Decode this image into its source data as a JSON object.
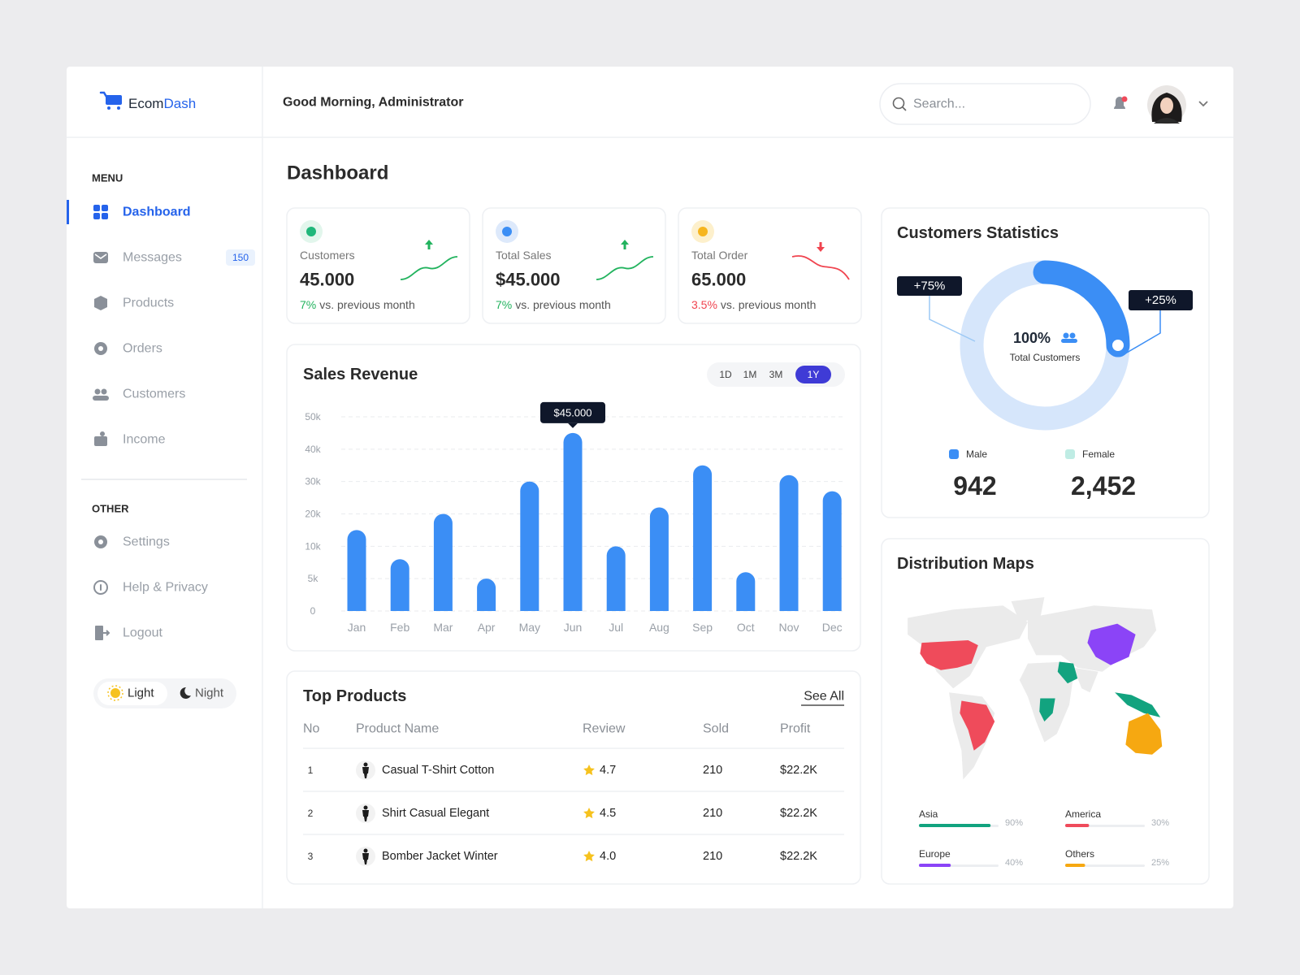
{
  "brand": [
    "Ecom",
    "Dash"
  ],
  "header": {
    "greeting": "Good Morning, Administrator",
    "search_placeholder": "Search..."
  },
  "menu": {
    "heading": "MENU",
    "items": [
      "Dashboard",
      "Messages",
      "Products",
      "Orders",
      "Customers",
      "Income"
    ],
    "badge": "150"
  },
  "other": {
    "heading": "OTHER",
    "items": [
      "Settings",
      "Help & Privacy",
      "Logout"
    ]
  },
  "theme": [
    "Light",
    "Night"
  ],
  "page_title": "Dashboard",
  "stats": [
    {
      "label": "Customers",
      "value": "45.000",
      "change": "7%",
      "note": "vs. previous month",
      "trend": "up",
      "color": "#1fb77a",
      "icon_bg": "#e2f6ec"
    },
    {
      "label": "Total Sales",
      "value": "$45.000",
      "change": "7%",
      "note": "vs. previous month",
      "trend": "up",
      "color": "#3b8ef5",
      "icon_bg": "#dde9fb"
    },
    {
      "label": "Total Order",
      "value": "65.000",
      "change": "3.5%",
      "note": "vs. previous month",
      "trend": "down",
      "color": "#f6b51e",
      "icon_bg": "#fdf0cc"
    }
  ],
  "chart_data": [
    {
      "type": "bar",
      "title": "Sales Revenue",
      "ranges": [
        "1D",
        "1M",
        "3M",
        "1Y"
      ],
      "categories": [
        "Jan",
        "Feb",
        "Mar",
        "Apr",
        "May",
        "Jun",
        "Jul",
        "Aug",
        "Sep",
        "Oct",
        "Nov",
        "Dec"
      ],
      "values": [
        15000,
        8000,
        20000,
        5000,
        30000,
        45000,
        10000,
        22000,
        35000,
        6000,
        32000,
        27000
      ],
      "value_labels": [
        null,
        null,
        null,
        null,
        null,
        "$45.000",
        null,
        null,
        null,
        null,
        null,
        null
      ],
      "color": "#3b8ef5",
      "ylim": [
        0,
        50000
      ],
      "yticks": [
        0,
        {
          "value": 5000,
          "label": "5k"
        },
        {
          "value": 10000,
          "label": "10k"
        },
        {
          "value": 20000,
          "label": "20k"
        },
        {
          "value": 30000,
          "label": "30k"
        },
        {
          "value": 40000,
          "label": "40k"
        },
        {
          "value": 50000,
          "label": "50k"
        }
      ],
      "grid": true
    },
    {
      "type": "pie",
      "title": "Customers Statistics",
      "values": [
        75,
        25
      ],
      "value_labels": [
        "+75%",
        "+25%"
      ],
      "colors": [
        "#d6e6fb",
        "#3b8ef5"
      ],
      "center_label": "100%",
      "center_sublabel": "Total Customers"
    }
  ],
  "customer_totals": [
    {
      "name": "Male",
      "count": "942",
      "color": "#3b8ef5"
    },
    {
      "name": "Female",
      "count": "2,452",
      "color": "#bfece4"
    }
  ],
  "top_products": {
    "title": "Top Products",
    "see_all": "See All",
    "columns": [
      "No",
      "Product Name",
      "Review",
      "Sold",
      "Profit"
    ],
    "rows": [
      [
        "1",
        "Casual T-Shirt Cotton",
        "4.7",
        "210",
        "$22.2K"
      ],
      [
        "2",
        "Shirt Casual Elegant",
        "4.5",
        "210",
        "$22.2K"
      ],
      [
        "3",
        "Bomber Jacket Winter",
        "4.0",
        "210",
        "$22.2K"
      ]
    ]
  },
  "distribution": {
    "title": "Distribution Maps",
    "regions": [
      {
        "name": "Asia",
        "value": 90,
        "label": "90%",
        "color": "#12a37f"
      },
      {
        "name": "America",
        "value": 30,
        "label": "30%",
        "color": "#ef4b5b"
      },
      {
        "name": "Europe",
        "value": 40,
        "label": "40%",
        "color": "#8b44f7"
      },
      {
        "name": "Others",
        "value": 25,
        "label": "25%",
        "color": "#f6a811"
      }
    ]
  }
}
